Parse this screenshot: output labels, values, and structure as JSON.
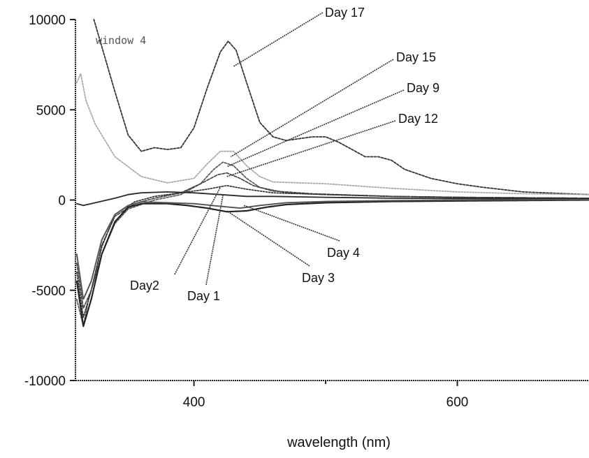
{
  "chart_data": {
    "type": "line",
    "title": "",
    "inset_label": "window 4",
    "xlabel": "wavelength (nm)",
    "ylabel": "",
    "xlim": [
      310,
      700
    ],
    "ylim": [
      -10000,
      10000
    ],
    "x_ticks": [
      400,
      600
    ],
    "x_minor_ticks": [
      500
    ],
    "y_ticks": [
      -10000,
      -5000,
      0,
      5000,
      10000
    ],
    "x_tick_labels": [
      "400",
      "600"
    ],
    "y_tick_labels": [
      "-10000",
      "-5000",
      "0",
      "5000",
      "10000"
    ],
    "grid": false,
    "legend": "none",
    "series": [
      {
        "name": "Day 17",
        "color": "#333333",
        "dash": "3,2",
        "width": 1.8,
        "points": [
          [
            324,
            10000
          ],
          [
            330,
            8500
          ],
          [
            340,
            6000
          ],
          [
            350,
            3600
          ],
          [
            360,
            2700
          ],
          [
            370,
            2900
          ],
          [
            380,
            2800
          ],
          [
            390,
            2900
          ],
          [
            400,
            4000
          ],
          [
            410,
            6200
          ],
          [
            420,
            8200
          ],
          [
            426,
            8800
          ],
          [
            432,
            8300
          ],
          [
            440,
            6500
          ],
          [
            450,
            4300
          ],
          [
            460,
            3500
          ],
          [
            470,
            3300
          ],
          [
            480,
            3400
          ],
          [
            490,
            3500
          ],
          [
            500,
            3500
          ],
          [
            510,
            3200
          ],
          [
            520,
            2800
          ],
          [
            530,
            2400
          ],
          [
            540,
            2400
          ],
          [
            550,
            2200
          ],
          [
            560,
            1700
          ],
          [
            580,
            1200
          ],
          [
            600,
            900
          ],
          [
            620,
            700
          ],
          [
            650,
            450
          ],
          [
            700,
            300
          ]
        ]
      },
      {
        "name": "Day 15",
        "color": "#aaaaaa",
        "dash": "2,2",
        "width": 1.8,
        "points": [
          [
            311,
            6500
          ],
          [
            314,
            7000
          ],
          [
            318,
            5500
          ],
          [
            325,
            4200
          ],
          [
            340,
            2400
          ],
          [
            360,
            1300
          ],
          [
            380,
            950
          ],
          [
            400,
            1200
          ],
          [
            410,
            2000
          ],
          [
            420,
            2700
          ],
          [
            430,
            2700
          ],
          [
            440,
            1900
          ],
          [
            450,
            1300
          ],
          [
            460,
            1000
          ],
          [
            480,
            950
          ],
          [
            500,
            900
          ],
          [
            520,
            800
          ],
          [
            550,
            650
          ],
          [
            600,
            450
          ],
          [
            650,
            350
          ],
          [
            700,
            300
          ]
        ]
      },
      {
        "name": "Day 9",
        "color": "#555555",
        "dash": "3,2",
        "width": 1.7,
        "points": [
          [
            311,
            -5500
          ],
          [
            316,
            -7000
          ],
          [
            320,
            -5500
          ],
          [
            330,
            -3000
          ],
          [
            340,
            -1300
          ],
          [
            350,
            -500
          ],
          [
            370,
            0
          ],
          [
            390,
            300
          ],
          [
            405,
            900
          ],
          [
            415,
            1700
          ],
          [
            422,
            2100
          ],
          [
            430,
            1900
          ],
          [
            440,
            1200
          ],
          [
            450,
            700
          ],
          [
            470,
            400
          ],
          [
            500,
            300
          ],
          [
            550,
            200
          ],
          [
            600,
            150
          ],
          [
            700,
            100
          ]
        ]
      },
      {
        "name": "Day 12",
        "color": "#444444",
        "dash": "4,2",
        "width": 1.7,
        "points": [
          [
            311,
            -3500
          ],
          [
            316,
            -6000
          ],
          [
            322,
            -5000
          ],
          [
            330,
            -2500
          ],
          [
            340,
            -900
          ],
          [
            355,
            -200
          ],
          [
            370,
            100
          ],
          [
            390,
            400
          ],
          [
            405,
            900
          ],
          [
            418,
            1400
          ],
          [
            425,
            1500
          ],
          [
            435,
            1200
          ],
          [
            445,
            800
          ],
          [
            460,
            500
          ],
          [
            490,
            350
          ],
          [
            550,
            200
          ],
          [
            600,
            150
          ],
          [
            700,
            100
          ]
        ]
      },
      {
        "name": "Day2",
        "color": "#333333",
        "dash": "2,2",
        "width": 1.7,
        "points": [
          [
            311,
            -4000
          ],
          [
            316,
            -6500
          ],
          [
            322,
            -5000
          ],
          [
            330,
            -2600
          ],
          [
            340,
            -800
          ],
          [
            355,
            -100
          ],
          [
            370,
            200
          ],
          [
            390,
            400
          ],
          [
            410,
            600
          ],
          [
            425,
            800
          ],
          [
            440,
            600
          ],
          [
            460,
            400
          ],
          [
            500,
            300
          ],
          [
            550,
            200
          ],
          [
            600,
            150
          ],
          [
            700,
            100
          ]
        ]
      },
      {
        "name": "Day 1",
        "color": "#2a2a2a",
        "dash": "",
        "width": 1.8,
        "points": [
          [
            311,
            -200
          ],
          [
            316,
            -300
          ],
          [
            325,
            -150
          ],
          [
            340,
            100
          ],
          [
            350,
            300
          ],
          [
            360,
            400
          ],
          [
            380,
            450
          ],
          [
            400,
            400
          ],
          [
            420,
            300
          ],
          [
            440,
            200
          ],
          [
            460,
            200
          ],
          [
            500,
            150
          ],
          [
            550,
            100
          ],
          [
            600,
            80
          ],
          [
            700,
            50
          ]
        ]
      },
      {
        "name": "Day 3",
        "color": "#222222",
        "dash": "3,1",
        "width": 2.2,
        "points": [
          [
            311,
            -4500
          ],
          [
            316,
            -7000
          ],
          [
            322,
            -5500
          ],
          [
            330,
            -3000
          ],
          [
            340,
            -1200
          ],
          [
            350,
            -400
          ],
          [
            360,
            -200
          ],
          [
            380,
            -200
          ],
          [
            395,
            -300
          ],
          [
            410,
            -450
          ],
          [
            425,
            -650
          ],
          [
            440,
            -600
          ],
          [
            455,
            -400
          ],
          [
            470,
            -250
          ],
          [
            500,
            -150
          ],
          [
            550,
            -80
          ],
          [
            600,
            -50
          ],
          [
            700,
            0
          ]
        ]
      },
      {
        "name": "Day 4",
        "color": "#555555",
        "dash": "2,1",
        "width": 2.0,
        "points": [
          [
            311,
            -3000
          ],
          [
            316,
            -5500
          ],
          [
            322,
            -4500
          ],
          [
            330,
            -2200
          ],
          [
            340,
            -800
          ],
          [
            350,
            -300
          ],
          [
            360,
            -100
          ],
          [
            380,
            -150
          ],
          [
            400,
            -200
          ],
          [
            420,
            -350
          ],
          [
            435,
            -450
          ],
          [
            450,
            -300
          ],
          [
            470,
            -150
          ],
          [
            500,
            -80
          ],
          [
            550,
            -30
          ],
          [
            600,
            0
          ],
          [
            700,
            20
          ]
        ]
      }
    ],
    "annotations": [
      {
        "text": "Day 17",
        "series": "Day 17",
        "point": [
          430,
          7400
        ]
      },
      {
        "text": "Day 15",
        "series": "Day 15",
        "point": [
          428,
          2400
        ]
      },
      {
        "text": "Day 9",
        "series": "Day 9",
        "point": [
          425,
          1850
        ]
      },
      {
        "text": "Day 12",
        "series": "Day 12",
        "point": [
          425,
          1300
        ]
      },
      {
        "text": "Day2",
        "series": "Day2",
        "point": [
          420,
          700
        ]
      },
      {
        "text": "Day 1",
        "series": "Day 1",
        "point": [
          422,
          250
        ]
      },
      {
        "text": "Day 3",
        "series": "Day 3",
        "point": [
          425,
          -600
        ]
      },
      {
        "text": "Day 4",
        "series": "Day 4",
        "point": [
          438,
          -300
        ]
      }
    ]
  }
}
